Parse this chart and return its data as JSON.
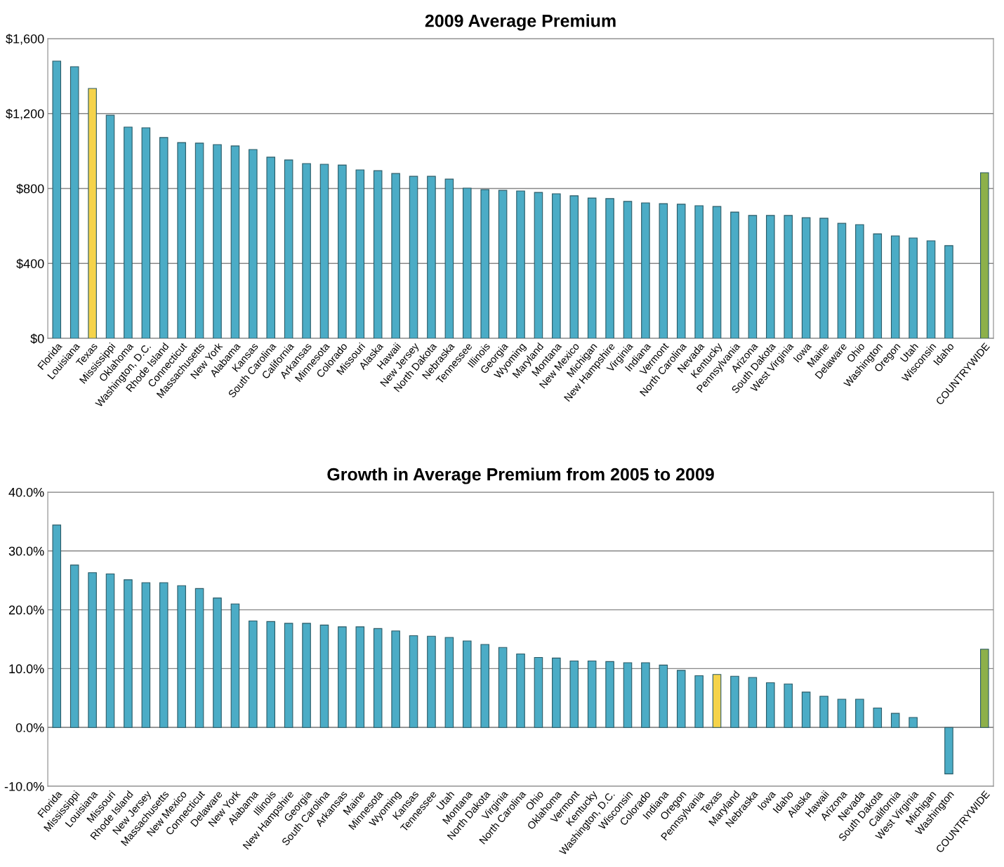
{
  "chart_data": [
    {
      "type": "bar",
      "title": "2009 Average Premium",
      "categories": [
        "Florida",
        "Louisiana",
        "Texas",
        "Mississippi",
        "Oklahoma",
        "Washington, D.C.",
        "Rhode Island",
        "Connecticut",
        "Massachusetts",
        "New York",
        "Alabama",
        "Kansas",
        "South Carolina",
        "California",
        "Arkansas",
        "Minnesota",
        "Colorado",
        "Missouri",
        "Alaska",
        "Hawaii",
        "New Jersey",
        "North Dakota",
        "Nebraska",
        "Tennessee",
        "Illinois",
        "Georgia",
        "Wyoming",
        "Maryland",
        "Montana",
        "New Mexico",
        "Michigan",
        "New Hampshire",
        "Virginia",
        "Indiana",
        "Vermont",
        "North Carolina",
        "Nevada",
        "Kentucky",
        "Pennsylvania",
        "Arizona",
        "South Dakota",
        "West Virginia",
        "Iowa",
        "Maine",
        "Delaware",
        "Ohio",
        "Washington",
        "Oregon",
        "Utah",
        "Wisconsin",
        "Idaho",
        null,
        "COUNTRYWIDE"
      ],
      "values": [
        1480,
        1450,
        1334,
        1191,
        1128,
        1124,
        1072,
        1045,
        1042,
        1034,
        1027,
        1008,
        967,
        952,
        933,
        929,
        925,
        899,
        895,
        880,
        865,
        865,
        850,
        802,
        794,
        790,
        787,
        779,
        772,
        761,
        749,
        746,
        731,
        723,
        719,
        716,
        708,
        704,
        674,
        656,
        656,
        656,
        644,
        641,
        614,
        607,
        558,
        547,
        536,
        521,
        495,
        null,
        884
      ],
      "colors": [
        "#4bacc6",
        "#4bacc6",
        "#f5d34a",
        "#4bacc6",
        "#4bacc6",
        "#4bacc6",
        "#4bacc6",
        "#4bacc6",
        "#4bacc6",
        "#4bacc6",
        "#4bacc6",
        "#4bacc6",
        "#4bacc6",
        "#4bacc6",
        "#4bacc6",
        "#4bacc6",
        "#4bacc6",
        "#4bacc6",
        "#4bacc6",
        "#4bacc6",
        "#4bacc6",
        "#4bacc6",
        "#4bacc6",
        "#4bacc6",
        "#4bacc6",
        "#4bacc6",
        "#4bacc6",
        "#4bacc6",
        "#4bacc6",
        "#4bacc6",
        "#4bacc6",
        "#4bacc6",
        "#4bacc6",
        "#4bacc6",
        "#4bacc6",
        "#4bacc6",
        "#4bacc6",
        "#4bacc6",
        "#4bacc6",
        "#4bacc6",
        "#4bacc6",
        "#4bacc6",
        "#4bacc6",
        "#4bacc6",
        "#4bacc6",
        "#4bacc6",
        "#4bacc6",
        "#4bacc6",
        "#4bacc6",
        "#4bacc6",
        "#4bacc6",
        "#4bacc6",
        "#8db04a"
      ],
      "ylim": [
        0,
        1600
      ],
      "yticks": [
        {
          "value": 0,
          "label": "$0"
        },
        {
          "value": 400,
          "label": "$400"
        },
        {
          "value": 800,
          "label": "$800"
        },
        {
          "value": 1200,
          "label": "$1,200"
        },
        {
          "value": 1600,
          "label": "$1,600"
        }
      ],
      "grid": "y"
    },
    {
      "type": "bar",
      "title": "Growth in Average Premium from 2005 to 2009",
      "categories": [
        "Florida",
        "Mississippi",
        "Louisiana",
        "Missouri",
        "Rhode Island",
        "New Jersey",
        "Massachusetts",
        "New Mexico",
        "Connecticut",
        "Delaware",
        "New York",
        "Alabama",
        "Illinois",
        "New Hampshire",
        "Georgia",
        "South Carolina",
        "Arkansas",
        "Maine",
        "Minnesota",
        "Wyoming",
        "Kansas",
        "Tennessee",
        "Utah",
        "Montana",
        "North Dakota",
        "Virginia",
        "North Carolina",
        "Ohio",
        "Oklahoma",
        "Vermont",
        "Kentucky",
        "Washington, D.C.",
        "Wisconsin",
        "Colorado",
        "Indiana",
        "Oregon",
        "Pennsylvania",
        "Texas",
        "Maryland",
        "Nebraska",
        "Iowa",
        "Idaho",
        "Alaska",
        "Hawaii",
        "Arizona",
        "Nevada",
        "South Dakota",
        "California",
        "West Virginia",
        "Michigan",
        "Washington",
        null,
        "COUNTRYWIDE"
      ],
      "values": [
        34.4,
        27.6,
        26.3,
        26.1,
        25.1,
        24.6,
        24.6,
        24.1,
        23.6,
        22.0,
        21.0,
        18.1,
        18.0,
        17.7,
        17.7,
        17.4,
        17.1,
        17.1,
        16.8,
        16.4,
        15.6,
        15.5,
        15.3,
        14.7,
        14.1,
        13.6,
        12.5,
        11.9,
        11.8,
        11.3,
        11.3,
        11.2,
        11.0,
        11.0,
        10.6,
        9.7,
        8.8,
        9.0,
        8.7,
        8.5,
        7.6,
        7.4,
        6.0,
        5.3,
        4.8,
        4.8,
        3.3,
        2.4,
        1.7,
        null,
        -7.9,
        null,
        13.3
      ],
      "colors": [
        "#4bacc6",
        "#4bacc6",
        "#4bacc6",
        "#4bacc6",
        "#4bacc6",
        "#4bacc6",
        "#4bacc6",
        "#4bacc6",
        "#4bacc6",
        "#4bacc6",
        "#4bacc6",
        "#4bacc6",
        "#4bacc6",
        "#4bacc6",
        "#4bacc6",
        "#4bacc6",
        "#4bacc6",
        "#4bacc6",
        "#4bacc6",
        "#4bacc6",
        "#4bacc6",
        "#4bacc6",
        "#4bacc6",
        "#4bacc6",
        "#4bacc6",
        "#4bacc6",
        "#4bacc6",
        "#4bacc6",
        "#4bacc6",
        "#4bacc6",
        "#4bacc6",
        "#4bacc6",
        "#4bacc6",
        "#4bacc6",
        "#4bacc6",
        "#4bacc6",
        "#4bacc6",
        "#f5d34a",
        "#4bacc6",
        "#4bacc6",
        "#4bacc6",
        "#4bacc6",
        "#4bacc6",
        "#4bacc6",
        "#4bacc6",
        "#4bacc6",
        "#4bacc6",
        "#4bacc6",
        "#4bacc6",
        "#4bacc6",
        "#4bacc6",
        "#4bacc6",
        "#8db04a"
      ],
      "ylim": [
        -10,
        40
      ],
      "yticks": [
        {
          "value": -10,
          "label": "-10.0%"
        },
        {
          "value": 0,
          "label": "0.0%"
        },
        {
          "value": 10,
          "label": "10.0%"
        },
        {
          "value": 20,
          "label": "20.0%"
        },
        {
          "value": 30,
          "label": "30.0%"
        },
        {
          "value": 40,
          "label": "40.0%"
        }
      ],
      "grid": "y"
    }
  ]
}
